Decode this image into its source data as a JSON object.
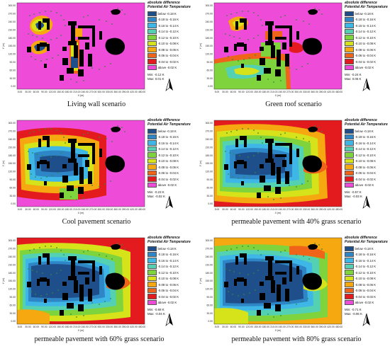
{
  "legend": {
    "title": "absolute difference Potential Air Temperature",
    "items": [
      {
        "label": "below -0.18 K",
        "color": "#1f4f8a"
      },
      {
        "label": "-0.18 to -0.16 K",
        "color": "#2f86c6"
      },
      {
        "label": "-0.16 to -0.14 K",
        "color": "#3fb7e6"
      },
      {
        "label": "-0.14 to -0.12 K",
        "color": "#54d1b2"
      },
      {
        "label": "-0.12 to -0.10 K",
        "color": "#7fd33c"
      },
      {
        "label": "-0.10 to -0.08 K",
        "color": "#d6e21a"
      },
      {
        "label": "-0.08 to -0.06 K",
        "color": "#f5a80f"
      },
      {
        "label": "-0.06 to -0.04 K",
        "color": "#f0641a"
      },
      {
        "label": "-0.04 to -0.02 K",
        "color": "#e31b1f"
      },
      {
        "label": "above -0.02 K",
        "color": "#ee4bd8"
      }
    ]
  },
  "axes": {
    "x_ticks": [
      "5.00",
      "30.00",
      "60.00",
      "90.00",
      "120.00",
      "150.00",
      "180.00",
      "210.00",
      "240.00",
      "270.00",
      "300.00",
      "330.00",
      "360.00",
      "390.00",
      "420.00",
      "450.00"
    ],
    "y_ticks": [
      "300.00",
      "270.00",
      "240.00",
      "210.00",
      "180.00",
      "150.00",
      "120.00",
      "90.00",
      "60.00",
      "30.00",
      "0.00"
    ],
    "x_label": "X (m)",
    "y_label": "Y (m)"
  },
  "panels": [
    {
      "caption": "Living wall scenario",
      "min": "Min: -0.12 K",
      "max": "Max: 0.01 K",
      "bg": "#ee4bd8",
      "variant": 1
    },
    {
      "caption": "Green roof scenario",
      "min": "Min: -0.24 K",
      "max": "Max: 0.05 K",
      "bg": "#ee4bd8",
      "variant": 2
    },
    {
      "caption": "Cool pavement scenario",
      "min": "Min: -0.23 K",
      "max": "Max: -0.02 K",
      "bg": "#ee4bd8",
      "variant": 3
    },
    {
      "caption": "permeable pavement with 40% grass scenario",
      "min": "Min: -0.57 K",
      "max": "Max: -0.03 K",
      "bg": "#e31b1f",
      "variant": 4
    },
    {
      "caption": "permeable pavement with 60% grass scenario",
      "min": "Min: -0.68 K",
      "max": "Max: -0.04 K",
      "bg": "#e31b1f",
      "variant": 5
    },
    {
      "caption": "permeable pavement with 80% grass scenario",
      "min": "Min: -0.71 K",
      "max": "Max: -0.06 K",
      "bg": "#f5a80f",
      "variant": 6
    }
  ],
  "north_arrow_icon": "north-arrow-icon"
}
